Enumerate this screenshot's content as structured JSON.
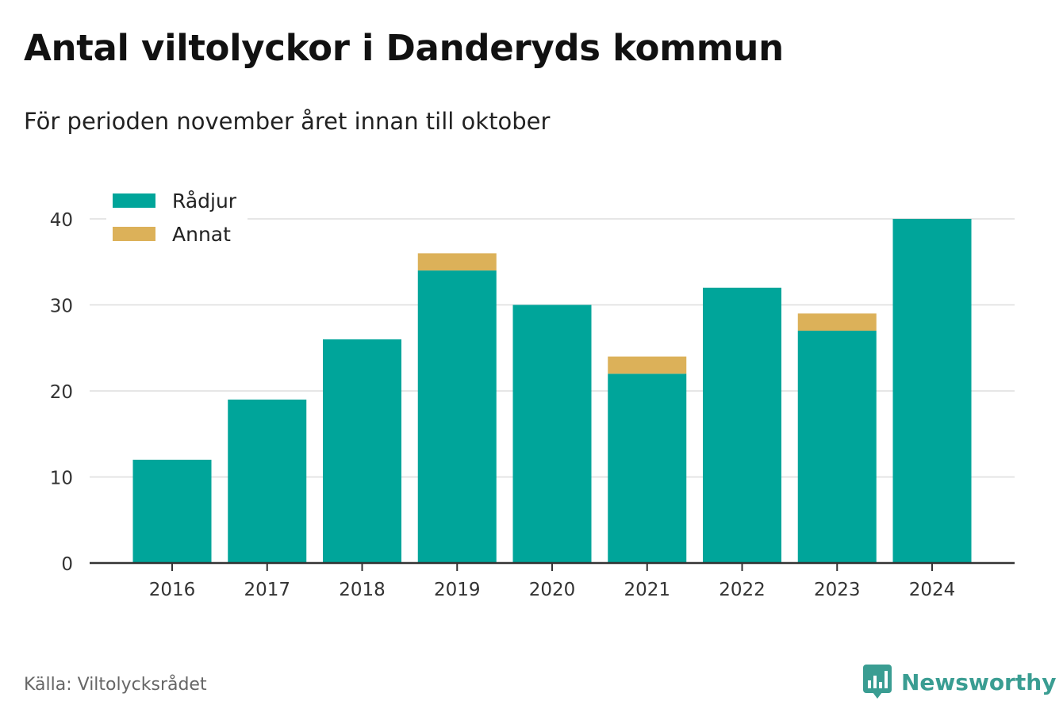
{
  "title": "Antal viltolyckor i Danderyds kommun",
  "subtitle": "För perioden november året innan till oktober",
  "source": "Källa: Viltolycksrådet",
  "brand": {
    "name": "Newsworthy",
    "icon": "newsworthy-logo-icon",
    "color": "#3a9d92"
  },
  "chart_data": {
    "type": "bar",
    "stacked": true,
    "categories": [
      "2016",
      "2017",
      "2018",
      "2019",
      "2020",
      "2021",
      "2022",
      "2023",
      "2024"
    ],
    "series": [
      {
        "name": "Rådjur",
        "color": "#00a59a",
        "values": [
          12,
          19,
          26,
          34,
          30,
          22,
          32,
          27,
          40
        ]
      },
      {
        "name": "Annat",
        "color": "#dcb159",
        "values": [
          0,
          0,
          0,
          2,
          0,
          2,
          0,
          2,
          0
        ]
      }
    ],
    "yticks": [
      "0",
      "10",
      "20",
      "30",
      "40"
    ],
    "ylim": [
      0,
      40
    ],
    "grid": true,
    "legend_position": "top-left"
  }
}
